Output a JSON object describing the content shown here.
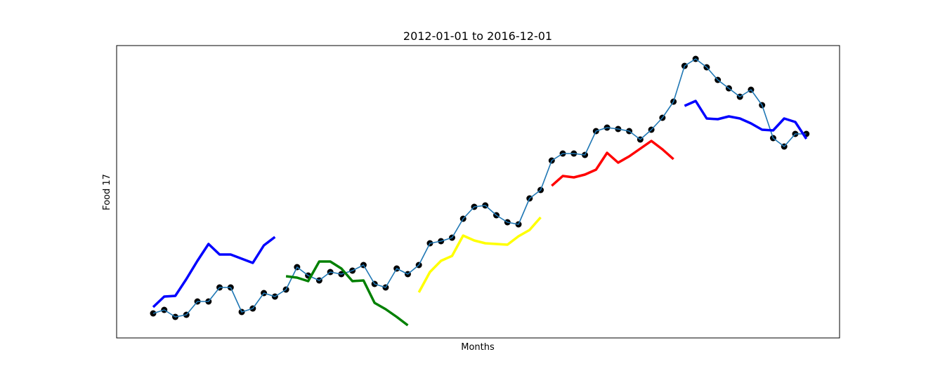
{
  "chart_data": {
    "type": "line",
    "title": "2012-01-01 to 2016-12-01",
    "xlabel": "Months",
    "ylabel": "Food 17",
    "xlim": [
      -3.3,
      62
    ],
    "ylim": [
      0,
      417
    ],
    "series": [
      {
        "color": "#1f77b4",
        "marker_color": "#000000",
        "x": [
          0,
          1,
          2,
          3,
          4,
          5,
          6,
          7,
          8,
          9,
          10,
          11,
          12,
          13,
          14,
          15,
          16,
          17,
          18,
          19,
          20,
          21,
          22,
          23,
          24,
          25,
          26,
          27,
          28,
          29,
          30,
          31,
          32,
          33,
          34,
          35,
          36,
          37,
          38,
          39,
          40,
          41,
          42,
          43,
          44,
          45,
          46,
          47,
          48,
          49,
          50,
          51,
          52,
          53,
          54,
          55,
          56,
          57,
          58,
          59
        ],
        "values": [
          35,
          40,
          30,
          33,
          52,
          52,
          72,
          72,
          37,
          42,
          64,
          59,
          69,
          101,
          89,
          82,
          94,
          91,
          96,
          104,
          77,
          72,
          99,
          91,
          104,
          135,
          138,
          143,
          170,
          187,
          189,
          175,
          165,
          162,
          199,
          211,
          253,
          263,
          263,
          261,
          295,
          300,
          298,
          295,
          283,
          297,
          314,
          337,
          388,
          398,
          386,
          368,
          356,
          344,
          354,
          332,
          285,
          273,
          291,
          291
        ]
      },
      {
        "color": "#0000ff",
        "x": [
          0,
          1,
          2,
          3,
          4,
          5,
          6,
          7,
          8,
          9,
          10,
          11
        ],
        "values": [
          44,
          59,
          60,
          84,
          110,
          134,
          119,
          119,
          113,
          107,
          132,
          144
        ]
      },
      {
        "color": "#008000",
        "x": [
          12,
          13,
          14,
          15,
          16,
          17,
          18,
          19,
          20,
          21,
          22,
          23
        ],
        "values": [
          88,
          86,
          81,
          109,
          109,
          99,
          81,
          82,
          50,
          41,
          30,
          18
        ]
      },
      {
        "color": "#ffff00",
        "x": [
          24,
          25,
          26,
          27,
          28,
          29,
          30,
          31,
          32,
          33,
          34,
          35
        ],
        "values": [
          65,
          94,
          110,
          117,
          146,
          139,
          135,
          134,
          133,
          145,
          154,
          172
        ]
      },
      {
        "color": "#ff0000",
        "x": [
          36,
          37,
          38,
          39,
          40,
          41,
          42,
          43,
          44,
          45,
          46,
          47
        ],
        "values": [
          217,
          231,
          229,
          233,
          240,
          264,
          250,
          259,
          270,
          281,
          269,
          255
        ]
      },
      {
        "color": "#0000ff",
        "x": [
          48,
          49,
          50,
          51,
          52,
          53,
          54,
          55,
          56,
          57,
          58,
          59
        ],
        "values": [
          331,
          338,
          313,
          312,
          316,
          313,
          306,
          297,
          296,
          313,
          308,
          284
        ]
      }
    ]
  }
}
